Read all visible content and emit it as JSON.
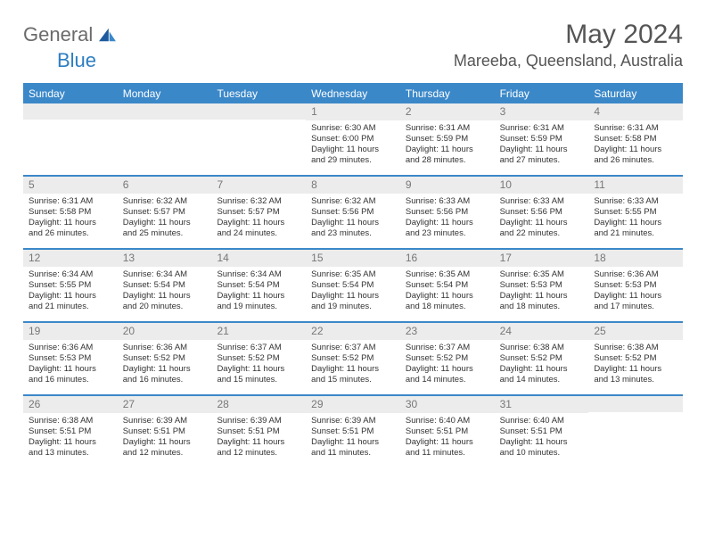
{
  "logo": {
    "general": "General",
    "blue": "Blue"
  },
  "title": "May 2024",
  "location": "Mareeba, Queensland, Australia",
  "colors": {
    "header_bg": "#3b88c9",
    "daynum_bg": "#ececec",
    "logo_gray": "#6b6b6b",
    "logo_blue": "#2d7ec2",
    "title_color": "#555555"
  },
  "day_names": [
    "Sunday",
    "Monday",
    "Tuesday",
    "Wednesday",
    "Thursday",
    "Friday",
    "Saturday"
  ],
  "weeks": [
    [
      null,
      null,
      null,
      {
        "n": "1",
        "sr": "6:30 AM",
        "ss": "6:00 PM",
        "dl": "11 hours and 29 minutes."
      },
      {
        "n": "2",
        "sr": "6:31 AM",
        "ss": "5:59 PM",
        "dl": "11 hours and 28 minutes."
      },
      {
        "n": "3",
        "sr": "6:31 AM",
        "ss": "5:59 PM",
        "dl": "11 hours and 27 minutes."
      },
      {
        "n": "4",
        "sr": "6:31 AM",
        "ss": "5:58 PM",
        "dl": "11 hours and 26 minutes."
      }
    ],
    [
      {
        "n": "5",
        "sr": "6:31 AM",
        "ss": "5:58 PM",
        "dl": "11 hours and 26 minutes."
      },
      {
        "n": "6",
        "sr": "6:32 AM",
        "ss": "5:57 PM",
        "dl": "11 hours and 25 minutes."
      },
      {
        "n": "7",
        "sr": "6:32 AM",
        "ss": "5:57 PM",
        "dl": "11 hours and 24 minutes."
      },
      {
        "n": "8",
        "sr": "6:32 AM",
        "ss": "5:56 PM",
        "dl": "11 hours and 23 minutes."
      },
      {
        "n": "9",
        "sr": "6:33 AM",
        "ss": "5:56 PM",
        "dl": "11 hours and 23 minutes."
      },
      {
        "n": "10",
        "sr": "6:33 AM",
        "ss": "5:56 PM",
        "dl": "11 hours and 22 minutes."
      },
      {
        "n": "11",
        "sr": "6:33 AM",
        "ss": "5:55 PM",
        "dl": "11 hours and 21 minutes."
      }
    ],
    [
      {
        "n": "12",
        "sr": "6:34 AM",
        "ss": "5:55 PM",
        "dl": "11 hours and 21 minutes."
      },
      {
        "n": "13",
        "sr": "6:34 AM",
        "ss": "5:54 PM",
        "dl": "11 hours and 20 minutes."
      },
      {
        "n": "14",
        "sr": "6:34 AM",
        "ss": "5:54 PM",
        "dl": "11 hours and 19 minutes."
      },
      {
        "n": "15",
        "sr": "6:35 AM",
        "ss": "5:54 PM",
        "dl": "11 hours and 19 minutes."
      },
      {
        "n": "16",
        "sr": "6:35 AM",
        "ss": "5:54 PM",
        "dl": "11 hours and 18 minutes."
      },
      {
        "n": "17",
        "sr": "6:35 AM",
        "ss": "5:53 PM",
        "dl": "11 hours and 18 minutes."
      },
      {
        "n": "18",
        "sr": "6:36 AM",
        "ss": "5:53 PM",
        "dl": "11 hours and 17 minutes."
      }
    ],
    [
      {
        "n": "19",
        "sr": "6:36 AM",
        "ss": "5:53 PM",
        "dl": "11 hours and 16 minutes."
      },
      {
        "n": "20",
        "sr": "6:36 AM",
        "ss": "5:52 PM",
        "dl": "11 hours and 16 minutes."
      },
      {
        "n": "21",
        "sr": "6:37 AM",
        "ss": "5:52 PM",
        "dl": "11 hours and 15 minutes."
      },
      {
        "n": "22",
        "sr": "6:37 AM",
        "ss": "5:52 PM",
        "dl": "11 hours and 15 minutes."
      },
      {
        "n": "23",
        "sr": "6:37 AM",
        "ss": "5:52 PM",
        "dl": "11 hours and 14 minutes."
      },
      {
        "n": "24",
        "sr": "6:38 AM",
        "ss": "5:52 PM",
        "dl": "11 hours and 14 minutes."
      },
      {
        "n": "25",
        "sr": "6:38 AM",
        "ss": "5:52 PM",
        "dl": "11 hours and 13 minutes."
      }
    ],
    [
      {
        "n": "26",
        "sr": "6:38 AM",
        "ss": "5:51 PM",
        "dl": "11 hours and 13 minutes."
      },
      {
        "n": "27",
        "sr": "6:39 AM",
        "ss": "5:51 PM",
        "dl": "11 hours and 12 minutes."
      },
      {
        "n": "28",
        "sr": "6:39 AM",
        "ss": "5:51 PM",
        "dl": "11 hours and 12 minutes."
      },
      {
        "n": "29",
        "sr": "6:39 AM",
        "ss": "5:51 PM",
        "dl": "11 hours and 11 minutes."
      },
      {
        "n": "30",
        "sr": "6:40 AM",
        "ss": "5:51 PM",
        "dl": "11 hours and 11 minutes."
      },
      {
        "n": "31",
        "sr": "6:40 AM",
        "ss": "5:51 PM",
        "dl": "11 hours and 10 minutes."
      },
      null
    ]
  ],
  "labels": {
    "sunrise": "Sunrise:",
    "sunset": "Sunset:",
    "daylight": "Daylight:"
  }
}
